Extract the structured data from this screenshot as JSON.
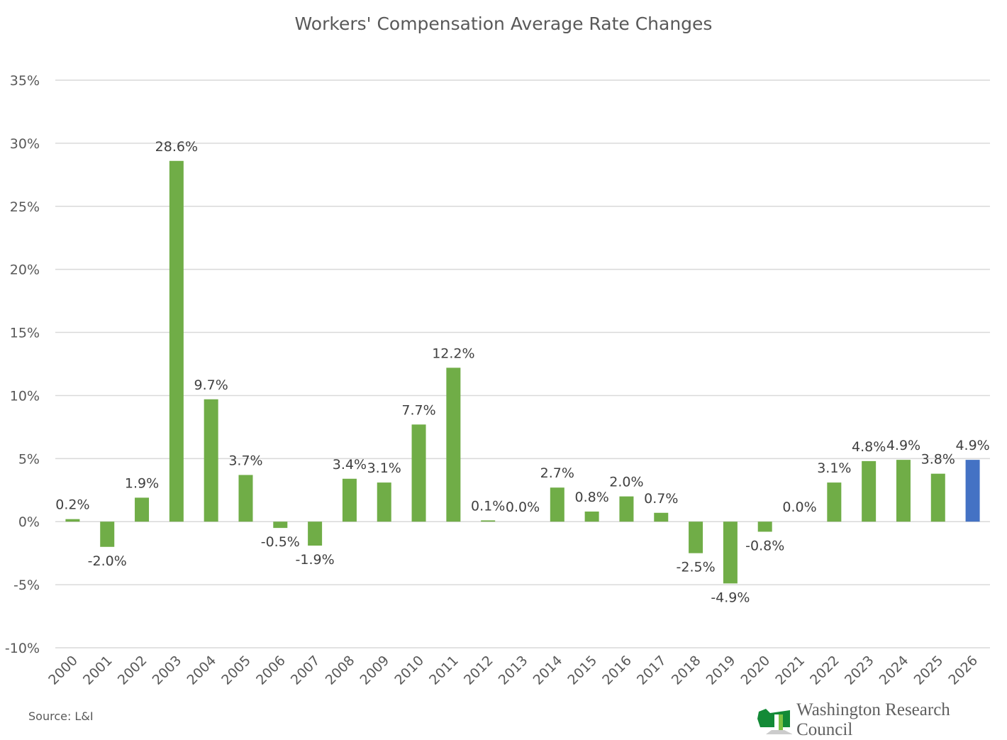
{
  "chart_data": {
    "type": "bar",
    "title": "Workers' Compensation Average Rate Changes",
    "categories": [
      "2000",
      "2001",
      "2002",
      "2003",
      "2004",
      "2005",
      "2006",
      "2007",
      "2008",
      "2009",
      "2010",
      "2011",
      "2012",
      "2013",
      "2014",
      "2015",
      "2016",
      "2017",
      "2018",
      "2019",
      "2020",
      "2021",
      "2022",
      "2023",
      "2024",
      "2025",
      "2026"
    ],
    "values": [
      0.2,
      -2.0,
      1.9,
      28.6,
      9.7,
      3.7,
      -0.5,
      -1.9,
      3.4,
      3.1,
      7.7,
      12.2,
      0.1,
      0.0,
      2.7,
      0.8,
      2.0,
      0.7,
      -2.5,
      -4.9,
      -0.8,
      0.0,
      3.1,
      4.8,
      4.9,
      3.8,
      4.9
    ],
    "data_labels": [
      "0.2%",
      "-2.0%",
      "1.9%",
      "28.6%",
      "9.7%",
      "3.7%",
      "-0.5%",
      "-1.9%",
      "3.4%",
      "3.1%",
      "7.7%",
      "12.2%",
      "0.1%",
      "0.0%",
      "2.7%",
      "0.8%",
      "2.0%",
      "0.7%",
      "-2.5%",
      "-4.9%",
      "-0.8%",
      "0.0%",
      "3.1%",
      "4.8%",
      "4.9%",
      "3.8%",
      "4.9%"
    ],
    "ylim": [
      -10,
      35
    ],
    "yticks": [
      -10,
      -5,
      0,
      5,
      10,
      15,
      20,
      25,
      30,
      35
    ],
    "ytick_labels": [
      "-10%",
      "-5%",
      "0%",
      "5%",
      "10%",
      "15%",
      "20%",
      "25%",
      "30%",
      "35%"
    ],
    "xlabel": "",
    "ylabel": "",
    "grid": true,
    "legend": "none",
    "colors": {
      "default": "#70AD47",
      "highlight": "#4472C4",
      "highlight_category": "2026",
      "grid": "#D9D9D9"
    }
  },
  "footer": {
    "source": "Source: L&I",
    "logo_text": "Washington Research Council"
  }
}
